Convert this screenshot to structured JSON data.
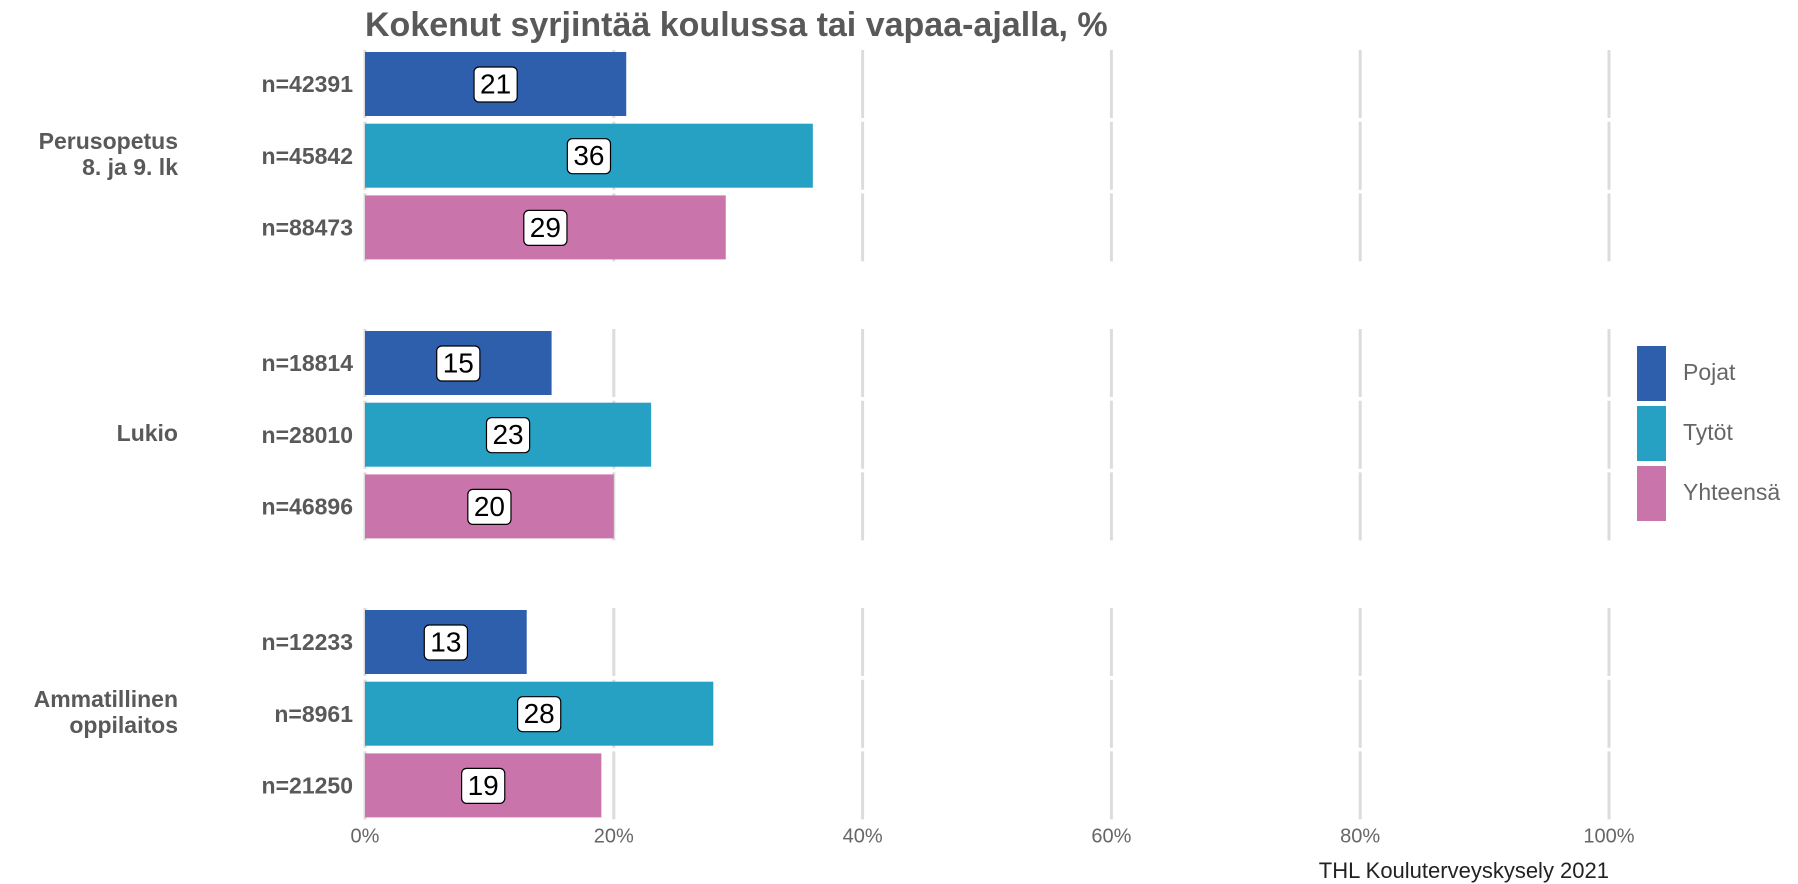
{
  "chart_data": {
    "type": "bar",
    "orientation": "horizontal",
    "title": "Kokenut syrjintää koulussa tai vapaa-ajalla, %",
    "caption": "THL Kouluterveyskysely 2021",
    "categories": [
      [
        "Perusopetus",
        "8. ja 9. lk"
      ],
      [
        "Lukio"
      ],
      [
        "Ammatillinen",
        "oppilaitos"
      ]
    ],
    "series": [
      {
        "name": "Pojat",
        "color": "#2e5fac",
        "values": [
          21,
          15,
          13
        ],
        "n_labels": [
          "n=42391",
          "n=18814",
          "n=12233"
        ]
      },
      {
        "name": "Tytöt",
        "color": "#26a1c4",
        "values": [
          36,
          23,
          28
        ],
        "n_labels": [
          "n=45842",
          "n=28010",
          "n=8961"
        ]
      },
      {
        "name": "Yhteensä",
        "color": "#c975ab",
        "values": [
          29,
          20,
          19
        ],
        "n_labels": [
          "n=88473",
          "n=46896",
          "n=21250"
        ]
      }
    ],
    "xlim": [
      0,
      100
    ],
    "xticks": [
      {
        "value": 0,
        "label": "0%"
      },
      {
        "value": 20,
        "label": "20%"
      },
      {
        "value": 40,
        "label": "40%"
      },
      {
        "value": 60,
        "label": "60%"
      },
      {
        "value": 80,
        "label": "80%"
      },
      {
        "value": 100,
        "label": "100%"
      }
    ],
    "grid": true,
    "legend": "right"
  }
}
